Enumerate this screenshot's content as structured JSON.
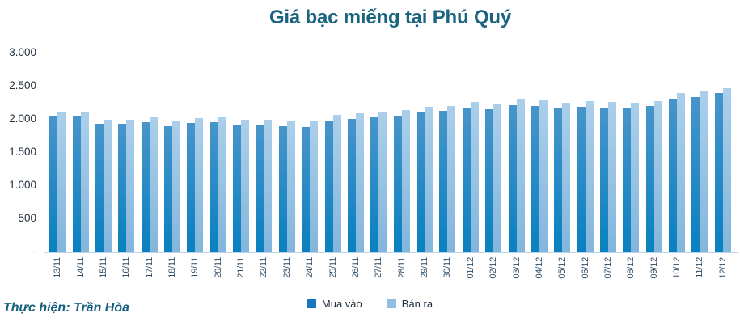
{
  "title": "Giá bạc miếng tại Phú Quý",
  "footer": "Thực hiện: Trần Hòa",
  "colors": {
    "title": "#1B6480",
    "baseline": "#BDD7EE",
    "buy_bar_top": "#4795CA",
    "buy_bar_bottom": "#0980C0",
    "sell_bar_top": "#ABCFEB",
    "sell_bar_bottom": "#83B6DC",
    "buy_legend": "#1779BD",
    "sell_legend": "#92BEE2"
  },
  "legend": [
    {
      "label": "Mua vào",
      "color": "#1779BD"
    },
    {
      "label": "Bán ra",
      "color": "#92BEE2"
    }
  ],
  "y_axis": {
    "ticks": [
      {
        "label": "3.000",
        "value": 3000
      },
      {
        "label": "2.500",
        "value": 2500
      },
      {
        "label": "2.000",
        "value": 2000
      },
      {
        "label": "1.500",
        "value": 1500
      },
      {
        "label": "1.000",
        "value": 1000
      },
      {
        "label": "500",
        "value": 500
      },
      {
        "label": "-",
        "value": 0
      }
    ]
  },
  "chart_data": {
    "type": "bar",
    "title": "Giá bạc miếng tại Phú Quý",
    "xlabel": "",
    "ylabel": "",
    "ylim": [
      0,
      3000
    ],
    "grid": false,
    "legend_position": "bottom",
    "categories": [
      "13/11",
      "14/11",
      "15/11",
      "16/11",
      "17/11",
      "18/11",
      "19/11",
      "20/11",
      "21/11",
      "22/11",
      "23/11",
      "24/11",
      "25/11",
      "26/11",
      "27/11",
      "28/11",
      "29/11",
      "30/11",
      "01/12",
      "02/12",
      "03/12",
      "04/12",
      "05/12",
      "06/12",
      "07/12",
      "08/12",
      "09/12",
      "10/12",
      "11/12",
      "12/12"
    ],
    "series": [
      {
        "name": "Mua vào",
        "color_top": "#4795CA",
        "color_bottom": "#0980C0",
        "values": [
          2045,
          2035,
          1925,
          1925,
          1950,
          1895,
          1945,
          1950,
          1920,
          1920,
          1890,
          1875,
          1980,
          1995,
          2020,
          2050,
          2105,
          2120,
          2175,
          2150,
          2205,
          2190,
          2155,
          2180,
          2175,
          2155,
          2190,
          2310,
          2335,
          2385
        ]
      },
      {
        "name": "Bán ra",
        "color_top": "#ABCFEB",
        "color_bottom": "#83B6DC",
        "values": [
          2115,
          2100,
          1990,
          1990,
          2020,
          1960,
          2015,
          2020,
          1985,
          1985,
          1980,
          1965,
          2065,
          2085,
          2115,
          2135,
          2180,
          2200,
          2260,
          2230,
          2290,
          2280,
          2240,
          2265,
          2260,
          2250,
          2270,
          2395,
          2420,
          2470
        ]
      }
    ]
  }
}
